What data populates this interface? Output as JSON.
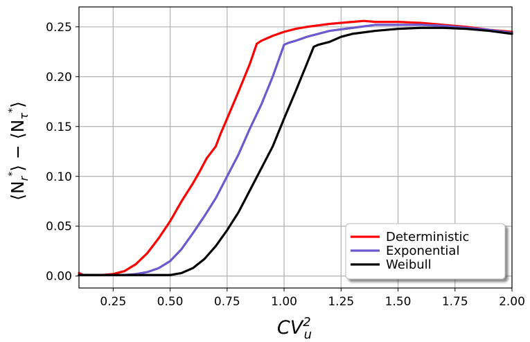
{
  "chart_data": {
    "type": "line",
    "title": "",
    "xlabel": "CV_u^2",
    "ylabel": "⟨N_{r*}⟩ − ⟨N_{τ*}⟩",
    "xlabel_parts": {
      "base": "CV",
      "sup": "2",
      "sub": "u"
    },
    "ylabel_parts": {
      "open1": "⟨N",
      "sub1": "r",
      "sup1": "*",
      "mid": "⟩ − ⟨N",
      "sub2": "τ",
      "sup2": "*",
      "close": "⟩"
    },
    "xlim": [
      0.1,
      2.0
    ],
    "ylim": [
      -0.012,
      0.27
    ],
    "grid": true,
    "legend_position": "lower-right",
    "x_ticks": [
      "0.25",
      "0.50",
      "0.75",
      "1.00",
      "1.25",
      "1.50",
      "1.75",
      "2.00"
    ],
    "y_ticks": [
      "0.00",
      "0.05",
      "0.10",
      "0.15",
      "0.20",
      "0.25"
    ],
    "x_tick_values": [
      0.25,
      0.5,
      0.75,
      1.0,
      1.25,
      1.5,
      1.75,
      2.0
    ],
    "y_tick_values": [
      0.0,
      0.05,
      0.1,
      0.15,
      0.2,
      0.25
    ],
    "series": [
      {
        "name": "Deterministic",
        "color": "#ff0000",
        "x": [
          0.1,
          0.11,
          0.12,
          0.15,
          0.2,
          0.25,
          0.3,
          0.35,
          0.4,
          0.45,
          0.5,
          0.55,
          0.6,
          0.63,
          0.66,
          0.7,
          0.72,
          0.75,
          0.8,
          0.85,
          0.88,
          0.9,
          0.95,
          1.0,
          1.05,
          1.1,
          1.2,
          1.3,
          1.35,
          1.4,
          1.5,
          1.6,
          1.7,
          1.8,
          1.9,
          2.0
        ],
        "y": [
          0.003,
          0.002,
          0.001,
          0.001,
          0.001,
          0.002,
          0.005,
          0.012,
          0.023,
          0.038,
          0.055,
          0.075,
          0.093,
          0.105,
          0.118,
          0.13,
          0.142,
          0.158,
          0.185,
          0.213,
          0.233,
          0.236,
          0.241,
          0.245,
          0.248,
          0.25,
          0.253,
          0.255,
          0.256,
          0.255,
          0.255,
          0.254,
          0.252,
          0.25,
          0.247,
          0.245
        ]
      },
      {
        "name": "Exponential",
        "color": "#6a5acd",
        "x": [
          0.1,
          0.2,
          0.3,
          0.35,
          0.4,
          0.45,
          0.5,
          0.55,
          0.6,
          0.65,
          0.7,
          0.75,
          0.8,
          0.85,
          0.9,
          0.95,
          1.0,
          1.02,
          1.05,
          1.1,
          1.2,
          1.3,
          1.4,
          1.5,
          1.6,
          1.7,
          1.8,
          1.9,
          2.0
        ],
        "y": [
          0.001,
          0.001,
          0.001,
          0.002,
          0.004,
          0.008,
          0.015,
          0.027,
          0.043,
          0.06,
          0.078,
          0.1,
          0.122,
          0.148,
          0.172,
          0.2,
          0.232,
          0.234,
          0.236,
          0.24,
          0.246,
          0.249,
          0.252,
          0.252,
          0.252,
          0.251,
          0.249,
          0.247,
          0.244
        ]
      },
      {
        "name": "Weibull",
        "color": "#000000",
        "x": [
          0.1,
          0.3,
          0.4,
          0.45,
          0.5,
          0.55,
          0.6,
          0.65,
          0.7,
          0.75,
          0.8,
          0.85,
          0.9,
          0.95,
          1.0,
          1.05,
          1.1,
          1.13,
          1.15,
          1.2,
          1.25,
          1.3,
          1.4,
          1.5,
          1.6,
          1.7,
          1.8,
          1.9,
          2.0
        ],
        "y": [
          0.001,
          0.001,
          0.001,
          0.001,
          0.001,
          0.003,
          0.008,
          0.017,
          0.03,
          0.046,
          0.064,
          0.086,
          0.108,
          0.13,
          0.158,
          0.185,
          0.213,
          0.23,
          0.232,
          0.235,
          0.24,
          0.243,
          0.246,
          0.248,
          0.249,
          0.249,
          0.248,
          0.246,
          0.243
        ]
      }
    ]
  }
}
